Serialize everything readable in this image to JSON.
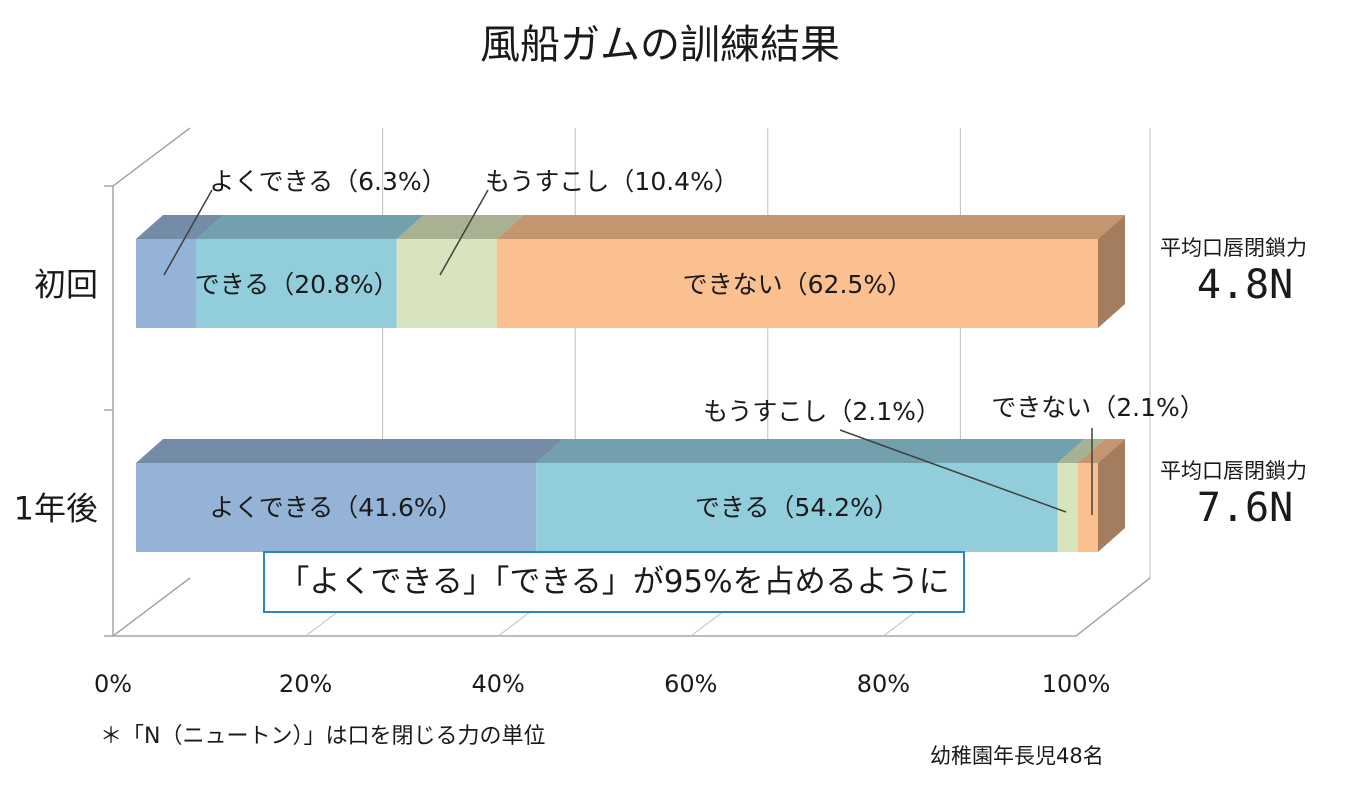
{
  "chart_data": {
    "type": "bar",
    "orientation": "horizontal",
    "stacked": "percent",
    "title": "風船ガムの訓練結果",
    "categories": [
      "初回",
      "1年後"
    ],
    "series": [
      {
        "name": "よくできる",
        "values": [
          6.3,
          41.6
        ],
        "color": "#95b3d7"
      },
      {
        "name": "できる",
        "values": [
          20.8,
          54.2
        ],
        "color": "#92cddc"
      },
      {
        "name": "もうすこし",
        "values": [
          10.4,
          2.1
        ],
        "color": "#d7e4bd"
      },
      {
        "name": "できない",
        "values": [
          62.5,
          2.1
        ],
        "color": "#fac090"
      }
    ],
    "xlim": [
      0,
      100
    ],
    "xticks": [
      "0%",
      "20%",
      "40%",
      "60%",
      "80%",
      "100%"
    ],
    "grid": true,
    "legend": "none",
    "data_labels": {
      "初回": [
        "よくできる（6.3%）",
        "できる（20.8%）",
        "もうすこし（10.4%）",
        "できない（62.5%）"
      ],
      "1年後": [
        "よくできる（41.6%）",
        "できる（54.2%）",
        "もうすこし（2.1%）",
        "できない（2.1%）"
      ]
    }
  },
  "force": [
    {
      "label": "平均口唇閉鎖力",
      "value": "4.8N"
    },
    {
      "label": "平均口唇閉鎖力",
      "value": "7.6N"
    }
  ],
  "callout": "「よくできる」「できる」が95%を占めるように",
  "footnote": "＊「N（ニュートン）」は口を閉じる力の単位",
  "sample": "幼稚園年長児48名"
}
